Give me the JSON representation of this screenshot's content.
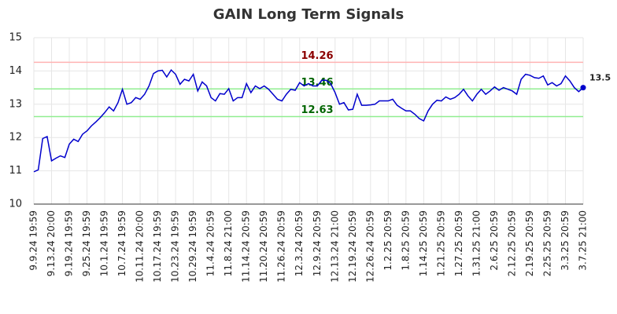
{
  "chart_data": {
    "type": "line",
    "title": "GAIN Long Term Signals",
    "categories": [
      "9.9.24 19:59",
      null,
      null,
      null,
      "9.13.24 20:00",
      null,
      null,
      null,
      "9.19.24 19:59",
      null,
      null,
      null,
      "9.25.24 19:59",
      null,
      null,
      null,
      "10.1.24 19:59",
      null,
      null,
      null,
      "10.7.24 19:59",
      null,
      null,
      null,
      "10.11.24 20:00",
      null,
      null,
      null,
      "10.17.24 19:59",
      null,
      null,
      null,
      "10.23.24 19:59",
      null,
      null,
      null,
      "10.29.24 19:59",
      null,
      null,
      null,
      "11.4.24 20:59",
      null,
      null,
      null,
      "11.8.24 21:00",
      null,
      null,
      null,
      "11.14.24 20:59",
      null,
      null,
      null,
      "11.20.24 20:59",
      null,
      null,
      null,
      "11.26.24 20:59",
      null,
      null,
      null,
      "12.3.24 20:59",
      null,
      null,
      null,
      "12.9.24 20:59",
      null,
      null,
      null,
      "12.13.24 21:00",
      null,
      null,
      null,
      "12.19.24 20:59",
      null,
      null,
      null,
      "12.26.24 20:59",
      null,
      null,
      null,
      "1.2.25 20:59",
      null,
      null,
      null,
      "1.8.25 20:59",
      null,
      null,
      null,
      "1.14.25 20:59",
      null,
      null,
      null,
      "1.21.25 20:59",
      null,
      null,
      null,
      "1.27.25 20:59",
      null,
      null,
      null,
      "1.31.25 21:00",
      null,
      null,
      null,
      "2.6.25 20:59",
      null,
      null,
      null,
      "2.12.25 20:59",
      null,
      null,
      null,
      "2.19.25 20:59",
      null,
      null,
      null,
      "2.25.25 20:59",
      null,
      null,
      null,
      "3.3.25 20:59",
      null,
      null,
      null,
      "3.7.25 21:00"
    ],
    "series": [
      {
        "color": "#0000cc",
        "values": [
          10.97,
          11.03,
          11.97,
          12.03,
          11.3,
          11.38,
          11.45,
          11.4,
          11.8,
          11.95,
          11.88,
          12.1,
          12.2,
          12.35,
          12.47,
          12.6,
          12.75,
          12.92,
          12.8,
          13.05,
          13.45,
          13.0,
          13.05,
          13.2,
          13.15,
          13.3,
          13.55,
          13.92,
          14.0,
          14.02,
          13.82,
          14.03,
          13.9,
          13.6,
          13.75,
          13.7,
          13.9,
          13.4,
          13.67,
          13.55,
          13.2,
          13.1,
          13.32,
          13.3,
          13.47,
          13.1,
          13.2,
          13.2,
          13.62,
          13.35,
          13.55,
          13.47,
          13.55,
          13.45,
          13.3,
          13.15,
          13.1,
          13.3,
          13.45,
          13.42,
          13.65,
          13.55,
          13.62,
          13.55,
          13.55,
          13.72,
          13.72,
          13.62,
          13.35,
          13.0,
          13.05,
          12.83,
          12.85,
          13.3,
          12.97,
          12.97,
          12.98,
          13.0,
          13.1,
          13.1,
          13.1,
          13.15,
          12.97,
          12.88,
          12.8,
          12.8,
          12.7,
          12.57,
          12.5,
          12.8,
          13.0,
          13.12,
          13.1,
          13.22,
          13.15,
          13.2,
          13.3,
          13.45,
          13.25,
          13.1,
          13.3,
          13.45,
          13.3,
          13.4,
          13.52,
          13.42,
          13.5,
          13.45,
          13.4,
          13.3,
          13.75,
          13.9,
          13.87,
          13.8,
          13.78,
          13.85,
          13.58,
          13.65,
          13.55,
          13.62,
          13.85,
          13.7,
          13.5,
          13.38,
          13.5
        ]
      }
    ],
    "hlines": [
      {
        "value": 14.26,
        "color": "#ffb3b3",
        "text_color": "#8b0000"
      },
      {
        "value": 13.46,
        "color": "#90ee90",
        "text_color": "#006400"
      },
      {
        "value": 12.63,
        "color": "#90ee90",
        "text_color": "#006400"
      }
    ],
    "ylim": [
      10,
      15
    ],
    "yticks": [
      10,
      11,
      12,
      13,
      14,
      15
    ],
    "grid": true
  }
}
